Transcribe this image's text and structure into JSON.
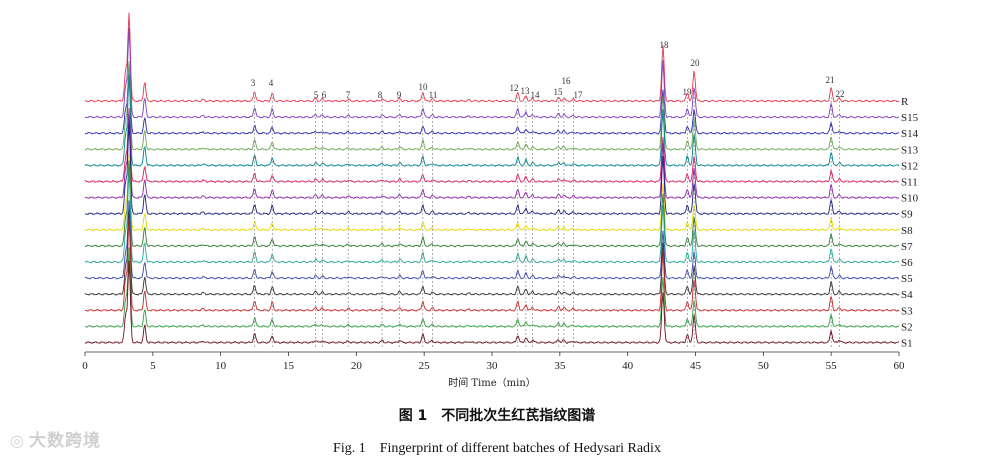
{
  "figure": {
    "caption_cn": "图 1　不同批次生红芪指纹图谱",
    "caption_en": "Fig. 1　Fingerprint of different batches of Hedysari Radix",
    "watermark": "大数跨境"
  },
  "chart_data": {
    "type": "line",
    "xlabel": "时间 Time（min）",
    "xlim": [
      0,
      60
    ],
    "xticks": [
      0,
      5,
      10,
      15,
      20,
      25,
      30,
      35,
      40,
      45,
      50,
      55,
      60
    ],
    "grid": false,
    "samples": [
      {
        "name": "R",
        "color": "#e8384f"
      },
      {
        "name": "S15",
        "color": "#7f3fbf"
      },
      {
        "name": "S14",
        "color": "#2b2bb0"
      },
      {
        "name": "S13",
        "color": "#6aa84f"
      },
      {
        "name": "S12",
        "color": "#00838f"
      },
      {
        "name": "S11",
        "color": "#d81b60"
      },
      {
        "name": "S10",
        "color": "#8e24aa"
      },
      {
        "name": "S9",
        "color": "#1a237e"
      },
      {
        "name": "S8",
        "color": "#e6d800"
      },
      {
        "name": "S7",
        "color": "#2e7d32"
      },
      {
        "name": "S6",
        "color": "#26a69a"
      },
      {
        "name": "S5",
        "color": "#3949ab"
      },
      {
        "name": "S4",
        "color": "#333333"
      },
      {
        "name": "S3",
        "color": "#c62828"
      },
      {
        "name": "S2",
        "color": "#2e9e3e"
      },
      {
        "name": "S1",
        "color": "#6d0f1f"
      }
    ],
    "peaks": [
      {
        "label": "3",
        "time": 12.5,
        "height": 0.18
      },
      {
        "label": "4",
        "time": 13.8,
        "height": 0.14
      },
      {
        "label": "5",
        "time": 17.0,
        "height": 0.05
      },
      {
        "label": "6",
        "time": 17.5,
        "height": 0.04
      },
      {
        "label": "7",
        "time": 19.4,
        "height": 0.03
      },
      {
        "label": "8",
        "time": 21.9,
        "height": 0.04
      },
      {
        "label": "9",
        "time": 23.2,
        "height": 0.05
      },
      {
        "label": "10",
        "time": 24.9,
        "height": 0.16
      },
      {
        "label": "11",
        "time": 25.6,
        "height": 0.04
      },
      {
        "label": "12",
        "time": 31.9,
        "height": 0.15
      },
      {
        "label": "13",
        "time": 32.5,
        "height": 0.1
      },
      {
        "label": "14",
        "time": 33.0,
        "height": 0.05
      },
      {
        "label": "15",
        "time": 34.9,
        "height": 0.06
      },
      {
        "label": "16",
        "time": 35.3,
        "height": 0.05
      },
      {
        "label": "17",
        "time": 36.0,
        "height": 0.03
      },
      {
        "label": "18",
        "time": 42.6,
        "height": 1.0
      },
      {
        "label": "19",
        "time": 44.4,
        "height": 0.16
      },
      {
        "label": "20",
        "time": 44.9,
        "height": 0.55
      },
      {
        "label": "21",
        "time": 55.0,
        "height": 0.24
      },
      {
        "label": "22",
        "time": 55.6,
        "height": 0.05
      }
    ],
    "unlabeled_peaks": [
      {
        "time": 3.0,
        "height": 0.55
      },
      {
        "time": 3.25,
        "height": 1.6
      },
      {
        "time": 4.4,
        "height": 0.35
      },
      {
        "time": 8.7,
        "height": 0.03
      },
      {
        "time": 28.3,
        "height": 0.02
      }
    ],
    "dashed_reference_lines": [
      12.5,
      13.8,
      17.0,
      17.5,
      19.4,
      21.9,
      23.2,
      24.9,
      25.6,
      31.9,
      32.5,
      33.0,
      34.9,
      35.3,
      36.0,
      44.4,
      44.9,
      55.0,
      55.6
    ]
  }
}
